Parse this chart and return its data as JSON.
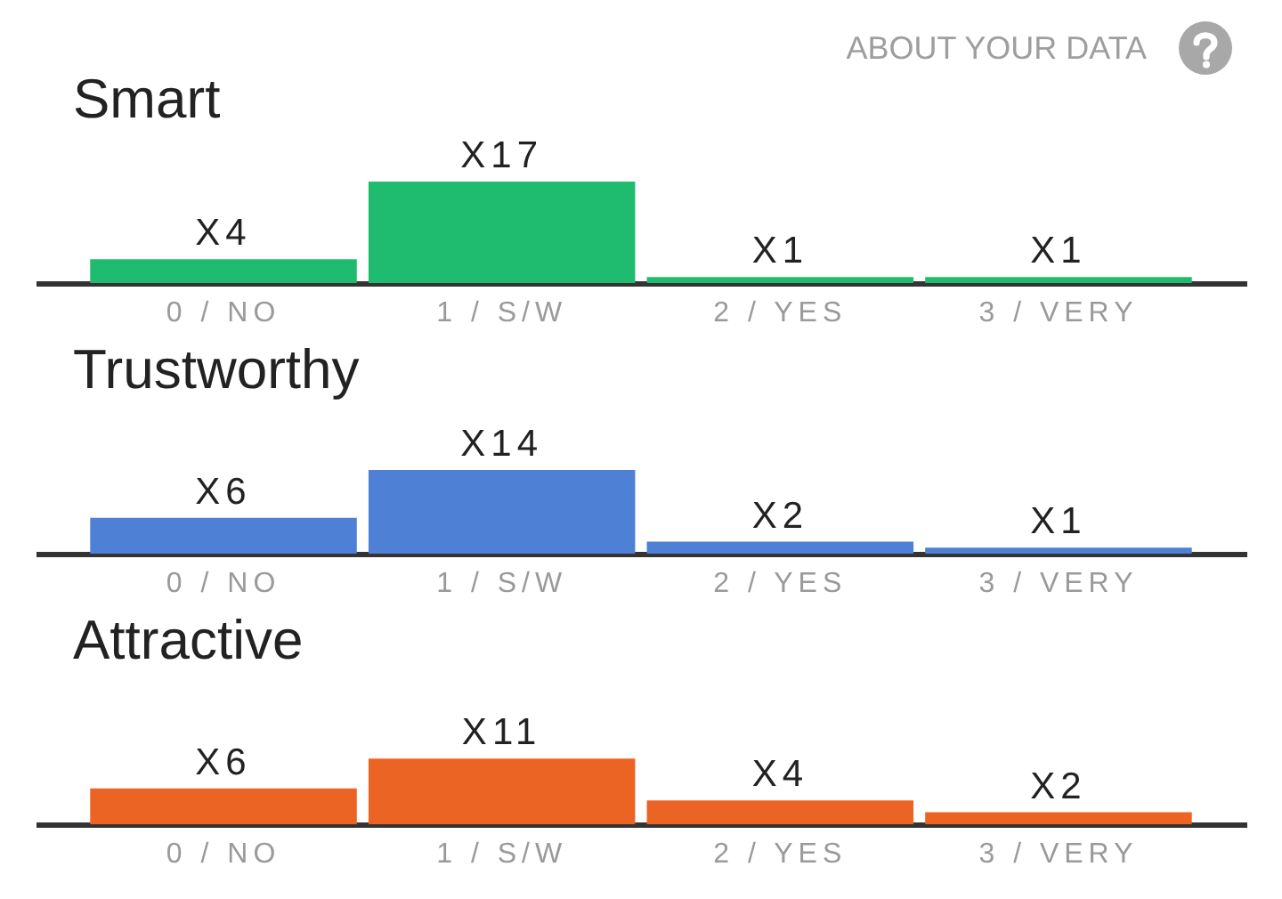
{
  "chart_data": [
    {
      "type": "bar",
      "title": "Smart",
      "categories": [
        "0 / NO",
        "1 / S/W",
        "2 / YES",
        "3 / VERY"
      ],
      "values": [
        4,
        17,
        1,
        1
      ],
      "value_labels": [
        "X4",
        "X17",
        "X1",
        "X1"
      ],
      "color": "#1fbb6e",
      "tick_labels": "x",
      "annotations": [
        "ABOUT YOUR DATA"
      ]
    },
    {
      "type": "bar",
      "title": "Trustworthy",
      "categories": [
        "0 / NO",
        "1 / S/W",
        "2 / YES",
        "3 / VERY"
      ],
      "values": [
        6,
        14,
        2,
        1
      ],
      "value_labels": [
        "X6",
        "X14",
        "X2",
        "X1"
      ],
      "color": "#4e80d6",
      "tick_labels": "x"
    },
    {
      "type": "bar",
      "title": "Attractive",
      "categories": [
        "0 / NO",
        "1 / S/W",
        "2 / YES",
        "3 / VERY"
      ],
      "values": [
        6,
        11,
        4,
        2
      ],
      "value_labels": [
        "X6",
        "X11",
        "X4",
        "X2"
      ],
      "color": "#ec6424",
      "tick_labels": "x"
    }
  ]
}
